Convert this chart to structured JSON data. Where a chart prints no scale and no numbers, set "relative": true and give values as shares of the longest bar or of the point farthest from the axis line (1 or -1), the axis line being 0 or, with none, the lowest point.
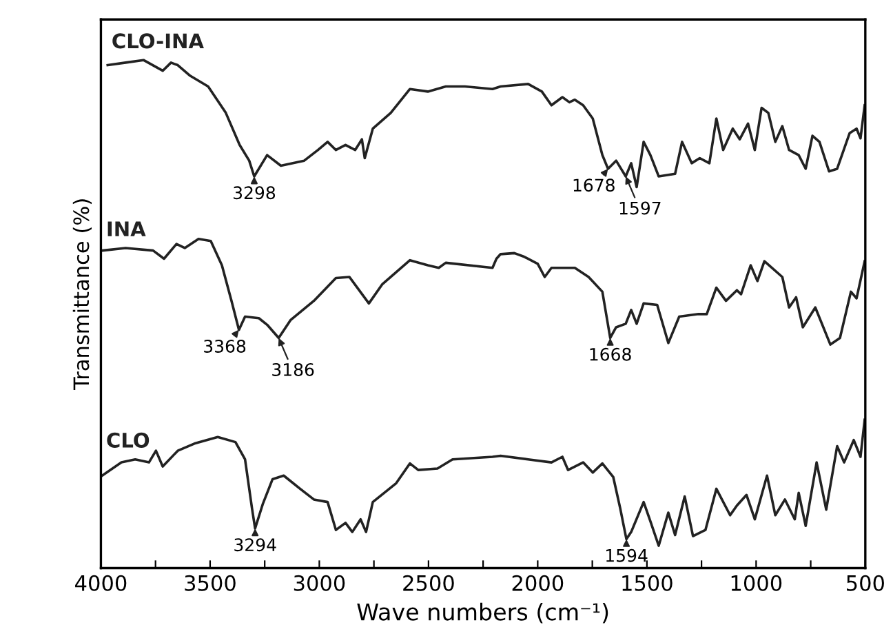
{
  "chart_data": {
    "type": "line",
    "relative": true,
    "xlabel": "Wave numbers (cm⁻¹)",
    "ylabel": "Transmittance (%)",
    "xlim": [
      4000,
      500
    ],
    "xticks": [
      4000,
      {
        "value": 3750,
        "label": null
      },
      3500,
      {
        "value": 3250,
        "label": null
      },
      3000,
      {
        "value": 2750,
        "label": null
      },
      2500,
      {
        "value": 2250,
        "label": null
      },
      2000,
      {
        "value": 1750,
        "label": null
      },
      1500,
      {
        "value": 1250,
        "label": null
      },
      1000,
      {
        "value": 750,
        "label": null
      },
      500
    ],
    "grid": false,
    "legend": false,
    "marker": "none",
    "line_style": "solid",
    "x": [
      3969,
      3887,
      3805,
      3717,
      3679,
      3648,
      3591,
      3509,
      3428,
      3365,
      3321,
      3298,
      3239,
      3176,
      3069,
      3006,
      2962,
      2924,
      2880,
      2836,
      2805,
      2792,
      2755,
      2673,
      2585,
      2503,
      2421,
      2333,
      2207,
      2170,
      2044,
      1981,
      1937,
      1887,
      1855,
      1830,
      1792,
      1748,
      1704,
      1678,
      1641,
      1597,
      1572,
      1547,
      1515,
      1484,
      1446,
      1371,
      1339,
      1295,
      1258,
      1214,
      1182,
      1151,
      1107,
      1075,
      1037,
      1006,
      975,
      944,
      912,
      880,
      849,
      805,
      773,
      742,
      710,
      666,
      629,
      572,
      540,
      522,
      503
    ],
    "series": [
      {
        "name": "CLO-INA",
        "color": "#222222",
        "values": [
          0.99,
          0.995,
          1,
          0.979,
          0.995,
          0.99,
          0.969,
          0.948,
          0.896,
          0.833,
          0.802,
          0.771,
          0.813,
          0.792,
          0.802,
          0.823,
          0.839,
          0.823,
          0.833,
          0.823,
          0.844,
          0.807,
          0.865,
          0.896,
          0.943,
          0.938,
          0.948,
          0.948,
          0.943,
          0.948,
          0.953,
          0.938,
          0.911,
          0.927,
          0.917,
          0.922,
          0.911,
          0.885,
          0.813,
          0.786,
          0.802,
          0.771,
          0.797,
          0.75,
          0.839,
          0.813,
          0.771,
          0.776,
          0.839,
          0.797,
          0.807,
          0.797,
          0.885,
          0.823,
          0.865,
          0.844,
          0.875,
          0.823,
          0.906,
          0.896,
          0.839,
          0.87,
          0.823,
          0.813,
          0.786,
          0.851,
          0.839,
          0.781,
          0.786,
          0.856,
          0.865,
          0.846,
          0.911
        ]
      },
      {
        "name": "INA",
        "color": "#222222",
        "x": [
          3994,
          3887,
          3761,
          3711,
          3654,
          3616,
          3553,
          3497,
          3446,
          3402,
          3368,
          3340,
          3277,
          3239,
          3186,
          3132,
          3025,
          2924,
          2862,
          2773,
          2711,
          2585,
          2503,
          2453,
          2421,
          2207,
          2189,
          2170,
          2107,
          2063,
          2000,
          1968,
          1937,
          1830,
          1767,
          1704,
          1668,
          1641,
          1597,
          1572,
          1547,
          1515,
          1453,
          1402,
          1352,
          1264,
          1226,
          1182,
          1138,
          1088,
          1069,
          1025,
          994,
          962,
          880,
          849,
          817,
          786,
          729,
          660,
          616,
          566,
          540,
          503
        ],
        "values": [
          0.625,
          0.63,
          0.625,
          0.609,
          0.638,
          0.63,
          0.648,
          0.644,
          0.596,
          0.526,
          0.469,
          0.495,
          0.492,
          0.479,
          0.453,
          0.488,
          0.526,
          0.571,
          0.573,
          0.521,
          0.559,
          0.606,
          0.596,
          0.591,
          0.601,
          0.591,
          0.609,
          0.618,
          0.62,
          0.613,
          0.599,
          0.573,
          0.591,
          0.591,
          0.573,
          0.544,
          0.453,
          0.474,
          0.481,
          0.508,
          0.481,
          0.521,
          0.518,
          0.443,
          0.495,
          0.5,
          0.5,
          0.552,
          0.526,
          0.547,
          0.539,
          0.596,
          0.565,
          0.604,
          0.573,
          0.513,
          0.533,
          0.474,
          0.513,
          0.44,
          0.453,
          0.544,
          0.531,
          0.604
        ]
      },
      {
        "name": "CLO",
        "color": "#222222",
        "x": [
          3994,
          3906,
          3843,
          3780,
          3748,
          3717,
          3648,
          3572,
          3465,
          3384,
          3340,
          3308,
          3294,
          3258,
          3214,
          3163,
          3088,
          3025,
          2962,
          2924,
          2880,
          2849,
          2811,
          2786,
          2755,
          2648,
          2585,
          2547,
          2459,
          2390,
          2207,
          2170,
          2044,
          1937,
          1887,
          1861,
          1792,
          1748,
          1704,
          1654,
          1622,
          1594,
          1572,
          1515,
          1484,
          1446,
          1402,
          1371,
          1327,
          1289,
          1232,
          1182,
          1119,
          1088,
          1044,
          1006,
          950,
          912,
          868,
          823,
          805,
          773,
          723,
          679,
          629,
          597,
          553,
          522,
          503
        ],
        "values": [
          0.182,
          0.208,
          0.214,
          0.208,
          0.231,
          0.2,
          0.231,
          0.245,
          0.258,
          0.248,
          0.214,
          0.117,
          0.078,
          0.127,
          0.175,
          0.182,
          0.156,
          0.135,
          0.13,
          0.075,
          0.089,
          0.071,
          0.096,
          0.071,
          0.13,
          0.167,
          0.206,
          0.193,
          0.196,
          0.214,
          0.219,
          0.221,
          0.214,
          0.208,
          0.219,
          0.193,
          0.208,
          0.188,
          0.206,
          0.179,
          0.117,
          0.057,
          0.071,
          0.13,
          0.092,
          0.044,
          0.109,
          0.065,
          0.141,
          0.063,
          0.075,
          0.156,
          0.104,
          0.123,
          0.144,
          0.096,
          0.182,
          0.104,
          0.135,
          0.096,
          0.148,
          0.083,
          0.208,
          0.115,
          0.24,
          0.208,
          0.252,
          0.219,
          0.292
        ]
      }
    ],
    "annotations": [
      {
        "text": "3298",
        "x": 3298,
        "y": 0.771
      },
      {
        "text": "1678",
        "x": 1678,
        "y": 0.786
      },
      {
        "text": "1597",
        "x": 1597,
        "y": 0.771
      },
      {
        "text": "3368",
        "x": 3368,
        "y": 0.469
      },
      {
        "text": "3186",
        "x": 3186,
        "y": 0.453
      },
      {
        "text": "1668",
        "x": 1668,
        "y": 0.453
      },
      {
        "text": "3294",
        "x": 3294,
        "y": 0.078
      },
      {
        "text": "1594",
        "x": 1594,
        "y": 0.057
      }
    ]
  }
}
